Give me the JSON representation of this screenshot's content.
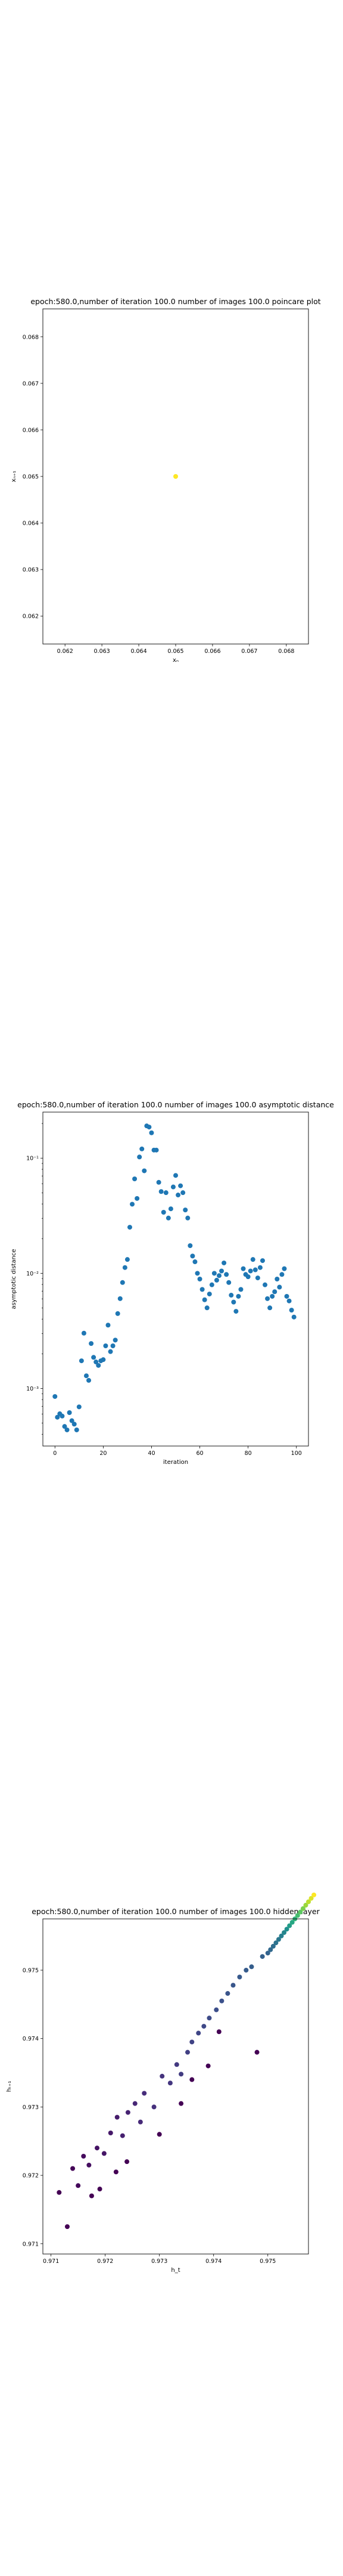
{
  "chart_data": [
    {
      "type": "scatter",
      "title": "epoch:580.0,number of iteration 100.0 number of images 100.0 poincare plot",
      "xlabel": "xₙ",
      "ylabel": "xₙ₊₁",
      "xlim": [
        0.0614,
        0.0686
      ],
      "ylim": [
        0.0614,
        0.0686
      ],
      "xticks": [
        "0.062",
        "0.063",
        "0.064",
        "0.065",
        "0.066",
        "0.067",
        "0.068"
      ],
      "yticks": [
        "0.062",
        "0.063",
        "0.064",
        "0.065",
        "0.066",
        "0.067",
        "0.068"
      ],
      "xtick_values": [
        0.062,
        0.063,
        0.064,
        0.065,
        0.066,
        0.067,
        0.068
      ],
      "ytick_values": [
        0.062,
        0.063,
        0.064,
        0.065,
        0.066,
        0.067,
        0.068
      ],
      "points": [
        {
          "x": 0.065,
          "y": 0.065
        }
      ],
      "colors": {
        "point": "#fde725"
      }
    },
    {
      "type": "scatter",
      "title": "epoch:580.0,number of iteration 100.0  number of images 100.0 asymptotic distance",
      "xlabel": "iteration",
      "ylabel": "asymptotic distance",
      "xlim": [
        -5,
        105
      ],
      "ylim": [
        -3.5,
        -0.6
      ],
      "yscale": "log",
      "xticks": [
        "0",
        "20",
        "40",
        "60",
        "80",
        "100"
      ],
      "xtick_values": [
        0,
        20,
        40,
        60,
        80,
        100
      ],
      "yticks": [
        "10⁻³",
        "10⁻²",
        "10⁻¹"
      ],
      "ytick_values": [
        -3,
        -2,
        -1
      ],
      "x": [
        0,
        1,
        2,
        3,
        4,
        5,
        6,
        7,
        8,
        9,
        10,
        11,
        12,
        13,
        14,
        15,
        16,
        17,
        18,
        19,
        20,
        21,
        22,
        23,
        24,
        25,
        26,
        27,
        28,
        29,
        30,
        31,
        32,
        33,
        34,
        35,
        36,
        37,
        38,
        39,
        40,
        41,
        42,
        43,
        44,
        45,
        46,
        47,
        48,
        49,
        50,
        51,
        52,
        53,
        54,
        55,
        56,
        57,
        58,
        59,
        60,
        61,
        62,
        63,
        64,
        65,
        66,
        67,
        68,
        69,
        70,
        71,
        72,
        73,
        74,
        75,
        76,
        77,
        78,
        79,
        80,
        81,
        82,
        83,
        84,
        85,
        86,
        87,
        88,
        89,
        90,
        91,
        92,
        93,
        94,
        95,
        96,
        97,
        98,
        99
      ],
      "y": [
        -3.07,
        -3.25,
        -3.22,
        -3.24,
        -3.33,
        -3.36,
        -3.21,
        -3.28,
        -3.31,
        -3.36,
        -3.16,
        -2.76,
        -2.52,
        -2.89,
        -2.93,
        -2.61,
        -2.73,
        -2.77,
        -2.8,
        -2.76,
        -2.75,
        -2.63,
        -2.45,
        -2.68,
        -2.63,
        -2.58,
        -2.35,
        -2.22,
        -2.08,
        -1.95,
        -1.88,
        -1.6,
        -1.4,
        -1.18,
        -1.35,
        -0.99,
        -0.92,
        -1.11,
        -0.72,
        -0.73,
        -0.78,
        -0.93,
        -0.93,
        -1.21,
        -1.29,
        -1.47,
        -1.3,
        -1.52,
        -1.44,
        -1.25,
        -1.15,
        -1.32,
        -1.24,
        -1.3,
        -1.45,
        -1.52,
        -1.76,
        -1.85,
        -1.9,
        -2.0,
        -2.05,
        -2.14,
        -2.23,
        -2.3,
        -2.18,
        -2.1,
        -2.0,
        -2.06,
        -2.02,
        -1.98,
        -1.91,
        -2.01,
        -2.08,
        -2.19,
        -2.25,
        -2.33,
        -2.2,
        -2.14,
        -1.96,
        -2.01,
        -2.03,
        -1.98,
        -1.88,
        -1.97,
        -2.04,
        -1.95,
        -1.89,
        -2.1,
        -2.22,
        -2.3,
        -2.2,
        -2.16,
        -2.05,
        -2.12,
        -2.01,
        -1.96,
        -2.2,
        -2.24,
        -2.32,
        -2.38
      ],
      "colors": {
        "point": "#1f77b4"
      }
    },
    {
      "type": "scatter",
      "title": "epoch:580.0,number of iteration 100.0  number of images 100.0 hidden layer",
      "xlabel": "h_t",
      "ylabel": "hₜ₊₁",
      "xlim": [
        0.97085,
        0.97575
      ],
      "ylim": [
        0.97085,
        0.97575
      ],
      "xticks": [
        "0.971",
        "0.972",
        "0.973",
        "0.974",
        "0.975"
      ],
      "xtick_values": [
        0.971,
        0.972,
        0.973,
        0.974,
        0.975
      ],
      "yticks": [
        "0.971",
        "0.972",
        "0.973",
        "0.974",
        "0.975"
      ],
      "ytick_values": [
        0.971,
        0.972,
        0.973,
        0.974,
        0.975
      ],
      "colormap": "viridis",
      "points": [
        {
          "x": 0.97115,
          "y": 0.97175,
          "c": 0.0
        },
        {
          "x": 0.9714,
          "y": 0.9721,
          "c": 0.01
        },
        {
          "x": 0.9715,
          "y": 0.97185,
          "c": 0.02
        },
        {
          "x": 0.9716,
          "y": 0.97228,
          "c": 0.03
        },
        {
          "x": 0.9717,
          "y": 0.97215,
          "c": 0.04
        },
        {
          "x": 0.97185,
          "y": 0.9724,
          "c": 0.05
        },
        {
          "x": 0.97198,
          "y": 0.97232,
          "c": 0.06
        },
        {
          "x": 0.9721,
          "y": 0.97262,
          "c": 0.07
        },
        {
          "x": 0.97222,
          "y": 0.97285,
          "c": 0.08
        },
        {
          "x": 0.97232,
          "y": 0.97258,
          "c": 0.09
        },
        {
          "x": 0.97242,
          "y": 0.97292,
          "c": 0.1
        },
        {
          "x": 0.97255,
          "y": 0.97305,
          "c": 0.11
        },
        {
          "x": 0.97265,
          "y": 0.97278,
          "c": 0.12
        },
        {
          "x": 0.97272,
          "y": 0.9732,
          "c": 0.13
        },
        {
          "x": 0.9729,
          "y": 0.973,
          "c": 0.14
        },
        {
          "x": 0.97305,
          "y": 0.97345,
          "c": 0.15
        },
        {
          "x": 0.9732,
          "y": 0.97335,
          "c": 0.16
        },
        {
          "x": 0.97332,
          "y": 0.97362,
          "c": 0.17
        },
        {
          "x": 0.9734,
          "y": 0.97348,
          "c": 0.18
        },
        {
          "x": 0.97352,
          "y": 0.9738,
          "c": 0.19
        },
        {
          "x": 0.9736,
          "y": 0.97395,
          "c": 0.2
        },
        {
          "x": 0.97372,
          "y": 0.97408,
          "c": 0.21
        },
        {
          "x": 0.97382,
          "y": 0.97418,
          "c": 0.22
        },
        {
          "x": 0.97392,
          "y": 0.9743,
          "c": 0.23
        },
        {
          "x": 0.97405,
          "y": 0.97442,
          "c": 0.24
        },
        {
          "x": 0.97415,
          "y": 0.97455,
          "c": 0.25
        },
        {
          "x": 0.97426,
          "y": 0.97466,
          "c": 0.26
        },
        {
          "x": 0.97436,
          "y": 0.97478,
          "c": 0.27
        },
        {
          "x": 0.97448,
          "y": 0.9749,
          "c": 0.28
        },
        {
          "x": 0.9746,
          "y": 0.975,
          "c": 0.29
        },
        {
          "x": 0.9747,
          "y": 0.97505,
          "c": 0.3
        },
        {
          "x": 0.9749,
          "y": 0.9752,
          "c": 0.31
        },
        {
          "x": 0.975,
          "y": 0.97525,
          "c": 0.32
        },
        {
          "x": 0.97505,
          "y": 0.9753,
          "c": 0.34
        },
        {
          "x": 0.9751,
          "y": 0.97535,
          "c": 0.36
        },
        {
          "x": 0.97515,
          "y": 0.9754,
          "c": 0.38
        },
        {
          "x": 0.9752,
          "y": 0.97545,
          "c": 0.4
        },
        {
          "x": 0.97525,
          "y": 0.9755,
          "c": 0.43
        },
        {
          "x": 0.9753,
          "y": 0.97555,
          "c": 0.46
        },
        {
          "x": 0.97535,
          "y": 0.9756,
          "c": 0.5
        },
        {
          "x": 0.9754,
          "y": 0.97565,
          "c": 0.55
        },
        {
          "x": 0.97545,
          "y": 0.9757,
          "c": 0.6
        },
        {
          "x": 0.9755,
          "y": 0.97575,
          "c": 0.65
        },
        {
          "x": 0.97555,
          "y": 0.9758,
          "c": 0.7
        },
        {
          "x": 0.9756,
          "y": 0.97585,
          "c": 0.75
        },
        {
          "x": 0.97565,
          "y": 0.9759,
          "c": 0.8
        },
        {
          "x": 0.9757,
          "y": 0.97595,
          "c": 0.85
        },
        {
          "x": 0.97575,
          "y": 0.976,
          "c": 0.9
        },
        {
          "x": 0.9758,
          "y": 0.97605,
          "c": 0.95
        },
        {
          "x": 0.97585,
          "y": 0.9761,
          "c": 1.0
        },
        {
          "x": 0.9713,
          "y": 0.97125,
          "c": 0.0
        },
        {
          "x": 0.97175,
          "y": 0.9717,
          "c": 0.0
        },
        {
          "x": 0.9719,
          "y": 0.9718,
          "c": 0.0
        },
        {
          "x": 0.9722,
          "y": 0.97205,
          "c": 0.0
        },
        {
          "x": 0.9724,
          "y": 0.9722,
          "c": 0.0
        },
        {
          "x": 0.973,
          "y": 0.9726,
          "c": 0.0
        },
        {
          "x": 0.9734,
          "y": 0.97305,
          "c": 0.0
        },
        {
          "x": 0.9736,
          "y": 0.9734,
          "c": 0.0
        },
        {
          "x": 0.9739,
          "y": 0.9736,
          "c": 0.0
        },
        {
          "x": 0.9741,
          "y": 0.9741,
          "c": 0.0
        },
        {
          "x": 0.9748,
          "y": 0.9738,
          "c": 0.0
        }
      ]
    }
  ]
}
